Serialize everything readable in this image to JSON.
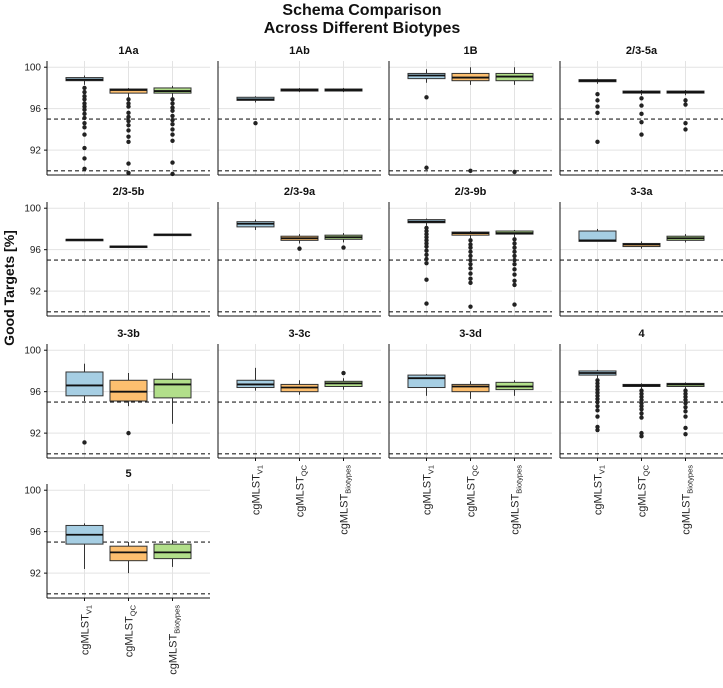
{
  "chart_data": {
    "type": "boxplot",
    "title_lines": [
      "Schema Comparison",
      "Across Different Biotypes"
    ],
    "ylabel": "Good Targets [%]",
    "ylim": [
      89.6,
      100.6
    ],
    "yticks": [
      92,
      96,
      100
    ],
    "reference_lines": [
      90,
      95
    ],
    "schemas": [
      {
        "base": "cgMLST",
        "sub": "V1",
        "color": "#a6cee3"
      },
      {
        "base": "cgMLST",
        "sub": "QC",
        "color": "#fdbf6f"
      },
      {
        "base": "cgMLST",
        "sub": "Biotypes",
        "color": "#b2df8a"
      }
    ],
    "panels": [
      {
        "title": "1Aa",
        "boxes": [
          {
            "q1": 98.7,
            "median": 98.8,
            "q3": 99.0,
            "whisker_low": 98.3,
            "whisker_high": 99.2,
            "outliers": [
              98.0,
              97.6,
              97.2,
              96.9,
              96.5,
              96.2,
              95.9,
              95.5,
              95.1,
              94.6,
              94.2,
              93.5,
              92.2,
              91.2,
              90.2
            ]
          },
          {
            "q1": 97.5,
            "median": 97.8,
            "q3": 97.9,
            "whisker_low": 97.1,
            "whisker_high": 98.0,
            "outliers": [
              96.9,
              96.5,
              96.2,
              95.6,
              95.2,
              94.8,
              94.4,
              93.9,
              93.3,
              92.8,
              90.7,
              89.8
            ]
          },
          {
            "q1": 97.5,
            "median": 97.7,
            "q3": 98.0,
            "whisker_low": 97.0,
            "whisker_high": 98.2,
            "outliers": [
              96.9,
              96.5,
              96.1,
              95.8,
              95.3,
              94.9,
              94.5,
              94.0,
              93.5,
              92.9,
              90.8,
              89.7
            ]
          }
        ]
      },
      {
        "title": "1Ab",
        "boxes": [
          {
            "q1": 96.8,
            "median": 96.9,
            "q3": 97.1,
            "whisker_low": 96.6,
            "whisker_high": 97.2,
            "outliers": [
              94.6
            ]
          },
          {
            "q1": 97.7,
            "median": 97.8,
            "q3": 97.9,
            "whisker_low": 97.6,
            "whisker_high": 98.0,
            "outliers": []
          },
          {
            "q1": 97.7,
            "median": 97.8,
            "q3": 97.9,
            "whisker_low": 97.6,
            "whisker_high": 98.0,
            "outliers": []
          }
        ]
      },
      {
        "title": "1B",
        "boxes": [
          {
            "q1": 98.9,
            "median": 99.2,
            "q3": 99.4,
            "whisker_low": 98.5,
            "whisker_high": 99.8,
            "outliers": [
              97.1,
              90.3
            ]
          },
          {
            "q1": 98.7,
            "median": 99.0,
            "q3": 99.4,
            "whisker_low": 98.3,
            "whisker_high": 100.0,
            "outliers": [
              90.0
            ]
          },
          {
            "q1": 98.7,
            "median": 99.1,
            "q3": 99.4,
            "whisker_low": 98.3,
            "whisker_high": 100.0,
            "outliers": [
              89.9
            ]
          }
        ]
      },
      {
        "title": "2/3-5a",
        "boxes": [
          {
            "q1": 98.6,
            "median": 98.7,
            "q3": 98.8,
            "whisker_low": 98.4,
            "whisker_high": 98.9,
            "outliers": [
              97.4,
              96.8,
              96.2,
              95.6,
              92.8
            ]
          },
          {
            "q1": 97.5,
            "median": 97.6,
            "q3": 97.7,
            "whisker_low": 97.3,
            "whisker_high": 97.8,
            "outliers": [
              97.0,
              96.3,
              95.5,
              94.7,
              93.5
            ]
          },
          {
            "q1": 97.5,
            "median": 97.6,
            "q3": 97.7,
            "whisker_low": 97.3,
            "whisker_high": 97.8,
            "outliers": [
              96.8,
              96.4,
              94.6,
              94.0
            ]
          }
        ]
      },
      {
        "title": "2/3-5b",
        "boxes": [
          {
            "q1": 96.9,
            "median": 96.95,
            "q3": 97.0,
            "whisker_low": 96.9,
            "whisker_high": 97.0,
            "outliers": []
          },
          {
            "q1": 96.25,
            "median": 96.3,
            "q3": 96.35,
            "whisker_low": 96.25,
            "whisker_high": 96.35,
            "outliers": []
          },
          {
            "q1": 97.4,
            "median": 97.45,
            "q3": 97.5,
            "whisker_low": 97.4,
            "whisker_high": 97.5,
            "outliers": []
          }
        ]
      },
      {
        "title": "2/3-9a",
        "boxes": [
          {
            "q1": 98.2,
            "median": 98.5,
            "q3": 98.7,
            "whisker_low": 97.9,
            "whisker_high": 98.9,
            "outliers": []
          },
          {
            "q1": 96.9,
            "median": 97.1,
            "q3": 97.3,
            "whisker_low": 96.6,
            "whisker_high": 97.5,
            "outliers": [
              96.1
            ]
          },
          {
            "q1": 97.0,
            "median": 97.2,
            "q3": 97.4,
            "whisker_low": 96.7,
            "whisker_high": 97.6,
            "outliers": [
              96.2
            ]
          }
        ]
      },
      {
        "title": "2/3-9b",
        "boxes": [
          {
            "q1": 98.6,
            "median": 98.7,
            "q3": 98.9,
            "whisker_low": 98.3,
            "whisker_high": 99.0,
            "outliers": [
              98.1,
              97.8,
              97.5,
              97.2,
              96.9,
              96.6,
              96.3,
              95.9,
              95.5,
              95.1,
              94.7,
              93.1,
              90.8
            ]
          },
          {
            "q1": 97.4,
            "median": 97.6,
            "q3": 97.7,
            "whisker_low": 97.1,
            "whisker_high": 97.8,
            "outliers": [
              96.9,
              96.5,
              96.2,
              95.8,
              95.4,
              95.0,
              94.6,
              94.2,
              93.7,
              93.2,
              92.8,
              90.5
            ]
          },
          {
            "q1": 97.5,
            "median": 97.6,
            "q3": 97.8,
            "whisker_low": 97.2,
            "whisker_high": 97.9,
            "outliers": [
              97.0,
              96.6,
              96.2,
              95.8,
              95.4,
              95.0,
              94.6,
              94.1,
              93.6,
              93.0,
              92.6,
              90.7
            ]
          }
        ]
      },
      {
        "title": "3-3a",
        "boxes": [
          {
            "q1": 96.8,
            "median": 96.9,
            "q3": 97.8,
            "whisker_low": 96.8,
            "whisker_high": 98.0,
            "outliers": []
          },
          {
            "q1": 96.3,
            "median": 96.5,
            "q3": 96.6,
            "whisker_low": 96.1,
            "whisker_high": 96.8,
            "outliers": []
          },
          {
            "q1": 96.9,
            "median": 97.1,
            "q3": 97.3,
            "whisker_low": 96.7,
            "whisker_high": 97.5,
            "outliers": []
          }
        ]
      },
      {
        "title": "3-3b",
        "boxes": [
          {
            "q1": 95.6,
            "median": 96.6,
            "q3": 97.9,
            "whisker_low": 95.1,
            "whisker_high": 98.7,
            "outliers": [
              91.1
            ]
          },
          {
            "q1": 95.1,
            "median": 96.0,
            "q3": 97.1,
            "whisker_low": 94.6,
            "whisker_high": 97.8,
            "outliers": [
              92.0
            ]
          },
          {
            "q1": 95.4,
            "median": 96.7,
            "q3": 97.2,
            "whisker_low": 92.9,
            "whisker_high": 97.8,
            "outliers": []
          }
        ]
      },
      {
        "title": "3-3c",
        "boxes": [
          {
            "q1": 96.4,
            "median": 96.7,
            "q3": 97.1,
            "whisker_low": 96.1,
            "whisker_high": 98.3,
            "outliers": []
          },
          {
            "q1": 96.0,
            "median": 96.4,
            "q3": 96.7,
            "whisker_low": 95.7,
            "whisker_high": 97.1,
            "outliers": []
          },
          {
            "q1": 96.5,
            "median": 96.8,
            "q3": 97.0,
            "whisker_low": 96.2,
            "whisker_high": 97.3,
            "outliers": [
              97.8
            ]
          }
        ]
      },
      {
        "title": "3-3d",
        "boxes": [
          {
            "q1": 96.4,
            "median": 97.3,
            "q3": 97.6,
            "whisker_low": 95.6,
            "whisker_high": 97.7,
            "outliers": []
          },
          {
            "q1": 96.0,
            "median": 96.5,
            "q3": 96.7,
            "whisker_low": 95.3,
            "whisker_high": 97.0,
            "outliers": []
          },
          {
            "q1": 96.2,
            "median": 96.5,
            "q3": 96.9,
            "whisker_low": 95.6,
            "whisker_high": 97.1,
            "outliers": []
          }
        ]
      },
      {
        "title": "4",
        "boxes": [
          {
            "q1": 97.6,
            "median": 97.8,
            "q3": 98.0,
            "whisker_low": 97.3,
            "whisker_high": 98.1,
            "outliers": [
              97.1,
              96.8,
              96.5,
              96.2,
              95.9,
              95.6,
              95.3,
              95.0,
              94.6,
              94.2,
              93.6,
              92.6,
              92.3
            ]
          },
          {
            "q1": 96.5,
            "median": 96.6,
            "q3": 96.7,
            "whisker_low": 96.3,
            "whisker_high": 96.8,
            "outliers": [
              96.1,
              95.8,
              95.5,
              95.2,
              94.9,
              94.6,
              94.3,
              93.9,
              93.5,
              92.0,
              91.7
            ]
          },
          {
            "q1": 96.5,
            "median": 96.7,
            "q3": 96.8,
            "whisker_low": 96.3,
            "whisker_high": 96.9,
            "outliers": [
              96.1,
              95.8,
              95.5,
              95.2,
              94.9,
              94.5,
              94.1,
              93.6,
              92.5,
              91.9
            ]
          }
        ]
      },
      {
        "title": "5",
        "boxes": [
          {
            "q1": 94.8,
            "median": 95.7,
            "q3": 96.6,
            "whisker_low": 92.4,
            "whisker_high": 96.8,
            "outliers": []
          },
          {
            "q1": 93.2,
            "median": 94.0,
            "q3": 94.6,
            "whisker_low": 92.0,
            "whisker_high": 95.0,
            "outliers": []
          },
          {
            "q1": 93.4,
            "median": 94.0,
            "q3": 94.8,
            "whisker_low": 92.6,
            "whisker_high": 95.2,
            "outliers": []
          }
        ]
      }
    ]
  }
}
